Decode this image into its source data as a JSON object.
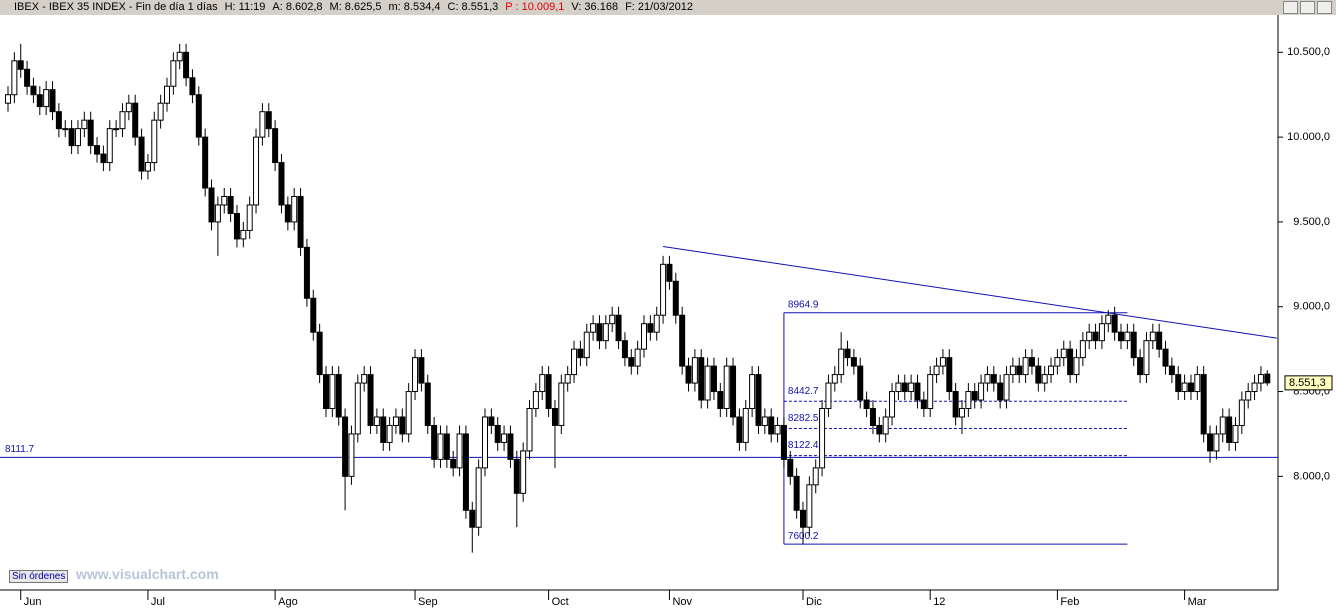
{
  "header": [
    "IBEX - IBEX 35 INDEX - Fin de día 1 días",
    "H: 11:19",
    "A: 8.602,8",
    "M: 8.625,5",
    "m: 8.534,4",
    "C: 8.551,3",
    "P : 10.009,1",
    "V: 36.168",
    "F: 21/03/2012"
  ],
  "button": "Sin órdenes",
  "watermark": "www.visualchart.com",
  "chart_data": {
    "type": "candlestick",
    "ylim": [
      7330,
      10720
    ],
    "yticks": [
      {
        "value": 8000,
        "label": "8.000,0"
      },
      {
        "value": 8500,
        "label": "8.500,0"
      },
      {
        "value": 9000,
        "label": "9.000,0"
      },
      {
        "value": 9500,
        "label": "9.500,0"
      },
      {
        "value": 10000,
        "label": "10.000,0"
      },
      {
        "value": 10500,
        "label": "10.500,0"
      }
    ],
    "xticks": [
      {
        "value": 2,
        "label": "Jun"
      },
      {
        "value": 22,
        "label": "Jul"
      },
      {
        "value": 42,
        "label": "Ago"
      },
      {
        "value": 64,
        "label": "Sep"
      },
      {
        "value": 85,
        "label": "Oct"
      },
      {
        "value": 104,
        "label": "Nov"
      },
      {
        "value": 125,
        "label": "Dic"
      },
      {
        "value": 145,
        "label": "12"
      },
      {
        "value": 165,
        "label": "Feb"
      },
      {
        "value": 185,
        "label": "Mar"
      }
    ],
    "close_label": {
      "value": 8551.3,
      "label": "8.551,3"
    },
    "hline": {
      "value": 8111.7,
      "label": "8111.7"
    },
    "box": {
      "x": [
        122,
        176
      ],
      "top": {
        "value": 8964.9,
        "label": "8964.9"
      },
      "bottom": {
        "value": 7600.2,
        "label": "7600.2"
      }
    },
    "levels": [
      {
        "value": 8442.7,
        "label": "8442.7"
      },
      {
        "value": 8282.5,
        "label": "8282.5"
      },
      {
        "value": 8122.4,
        "label": "8122.4"
      }
    ],
    "trendline": {
      "x": [
        103,
        199.5
      ],
      "y": [
        9355,
        8815
      ]
    },
    "candles": [
      [
        10200,
        10300,
        10150,
        10250
      ],
      [
        10250,
        10500,
        10200,
        10450
      ],
      [
        10450,
        10550,
        10350,
        10400
      ],
      [
        10400,
        10450,
        10250,
        10300
      ],
      [
        10300,
        10350,
        10200,
        10250
      ],
      [
        10250,
        10300,
        10130,
        10180
      ],
      [
        10180,
        10330,
        10130,
        10280
      ],
      [
        10280,
        10330,
        10100,
        10150
      ],
      [
        10150,
        10200,
        10000,
        10050
      ],
      [
        10050,
        10100,
        10000,
        10050
      ],
      [
        10050,
        10100,
        9900,
        9950
      ],
      [
        9950,
        10100,
        9900,
        10050
      ],
      [
        10050,
        10150,
        10000,
        10100
      ],
      [
        10100,
        10150,
        9900,
        9950
      ],
      [
        9950,
        10000,
        9850,
        9900
      ],
      [
        9900,
        9950,
        9800,
        9850
      ],
      [
        9850,
        10100,
        9800,
        10050
      ],
      [
        10050,
        10100,
        10000,
        10050
      ],
      [
        10050,
        10200,
        10000,
        10150
      ],
      [
        10150,
        10250,
        10100,
        10200
      ],
      [
        10200,
        10250,
        9950,
        10000
      ],
      [
        10000,
        10050,
        9750,
        9800
      ],
      [
        9800,
        9900,
        9750,
        9850
      ],
      [
        9850,
        10150,
        9800,
        10100
      ],
      [
        10100,
        10250,
        10050,
        10200
      ],
      [
        10200,
        10350,
        10150,
        10300
      ],
      [
        10300,
        10500,
        10250,
        10450
      ],
      [
        10450,
        10550,
        10400,
        10500
      ],
      [
        10500,
        10550,
        10300,
        10350
      ],
      [
        10350,
        10400,
        10200,
        10250
      ],
      [
        10250,
        10300,
        9950,
        10000
      ],
      [
        10000,
        10050,
        9650,
        9700
      ],
      [
        9700,
        9750,
        9450,
        9500
      ],
      [
        9500,
        9650,
        9300,
        9600
      ],
      [
        9600,
        9700,
        9550,
        9650
      ],
      [
        9650,
        9700,
        9500,
        9550
      ],
      [
        9550,
        9600,
        9350,
        9400
      ],
      [
        9400,
        9500,
        9350,
        9450
      ],
      [
        9450,
        9650,
        9400,
        9600
      ],
      [
        9600,
        10050,
        9550,
        10000
      ],
      [
        10000,
        10200,
        9950,
        10150
      ],
      [
        10150,
        10200,
        10000,
        10050
      ],
      [
        10050,
        10100,
        9800,
        9850
      ],
      [
        9850,
        9900,
        9550,
        9600
      ],
      [
        9600,
        9650,
        9450,
        9500
      ],
      [
        9500,
        9700,
        9450,
        9650
      ],
      [
        9650,
        9700,
        9300,
        9350
      ],
      [
        9350,
        9400,
        9000,
        9050
      ],
      [
        9050,
        9100,
        8800,
        8850
      ],
      [
        8850,
        8900,
        8550,
        8600
      ],
      [
        8600,
        8650,
        8350,
        8400
      ],
      [
        8400,
        8650,
        8350,
        8600
      ],
      [
        8600,
        8650,
        8300,
        8350
      ],
      [
        8350,
        8400,
        7800,
        8000
      ],
      [
        8000,
        8300,
        7950,
        8250
      ],
      [
        8250,
        8600,
        8200,
        8550
      ],
      [
        8550,
        8650,
        8500,
        8600
      ],
      [
        8600,
        8650,
        8250,
        8300
      ],
      [
        8300,
        8400,
        8250,
        8350
      ],
      [
        8350,
        8400,
        8150,
        8200
      ],
      [
        8200,
        8350,
        8150,
        8300
      ],
      [
        8300,
        8400,
        8250,
        8350
      ],
      [
        8350,
        8400,
        8200,
        8250
      ],
      [
        8250,
        8550,
        8200,
        8500
      ],
      [
        8500,
        8750,
        8450,
        8700
      ],
      [
        8700,
        8750,
        8500,
        8550
      ],
      [
        8550,
        8600,
        8250,
        8300
      ],
      [
        8300,
        8350,
        8050,
        8100
      ],
      [
        8100,
        8300,
        8050,
        8250
      ],
      [
        8250,
        8300,
        8050,
        8100
      ],
      [
        8100,
        8150,
        8000,
        8050
      ],
      [
        8050,
        8300,
        8000,
        8250
      ],
      [
        8250,
        8300,
        7750,
        7800
      ],
      [
        7800,
        7850,
        7550,
        7700
      ],
      [
        7700,
        8100,
        7650,
        8050
      ],
      [
        8050,
        8400,
        8000,
        8350
      ],
      [
        8350,
        8400,
        8250,
        8300
      ],
      [
        8300,
        8350,
        8150,
        8200
      ],
      [
        8200,
        8300,
        8150,
        8250
      ],
      [
        8250,
        8300,
        8050,
        8100
      ],
      [
        8100,
        8150,
        7700,
        7900
      ],
      [
        7900,
        8200,
        7850,
        8150
      ],
      [
        8150,
        8450,
        8100,
        8400
      ],
      [
        8400,
        8550,
        8350,
        8500
      ],
      [
        8500,
        8650,
        8450,
        8600
      ],
      [
        8600,
        8650,
        8350,
        8400
      ],
      [
        8400,
        8450,
        8050,
        8300
      ],
      [
        8300,
        8600,
        8250,
        8550
      ],
      [
        8550,
        8650,
        8500,
        8600
      ],
      [
        8600,
        8800,
        8550,
        8750
      ],
      [
        8750,
        8800,
        8650,
        8700
      ],
      [
        8700,
        8900,
        8650,
        8850
      ],
      [
        8850,
        8950,
        8800,
        8900
      ],
      [
        8900,
        8950,
        8750,
        8800
      ],
      [
        8800,
        8950,
        8750,
        8900
      ],
      [
        8900,
        9000,
        8850,
        8950
      ],
      [
        8950,
        9000,
        8750,
        8800
      ],
      [
        8800,
        8850,
        8650,
        8700
      ],
      [
        8700,
        8750,
        8600,
        8650
      ],
      [
        8650,
        8800,
        8600,
        8750
      ],
      [
        8750,
        8950,
        8700,
        8900
      ],
      [
        8900,
        8950,
        8800,
        8850
      ],
      [
        8850,
        9000,
        8800,
        8950
      ],
      [
        8950,
        9300,
        8900,
        9250
      ],
      [
        9250,
        9300,
        9100,
        9150
      ],
      [
        9150,
        9200,
        8900,
        8950
      ],
      [
        8950,
        9000,
        8600,
        8650
      ],
      [
        8650,
        8700,
        8500,
        8550
      ],
      [
        8550,
        8750,
        8500,
        8700
      ],
      [
        8700,
        8750,
        8400,
        8450
      ],
      [
        8450,
        8700,
        8400,
        8650
      ],
      [
        8650,
        8700,
        8450,
        8500
      ],
      [
        8500,
        8550,
        8350,
        8400
      ],
      [
        8400,
        8700,
        8350,
        8650
      ],
      [
        8650,
        8700,
        8300,
        8350
      ],
      [
        8350,
        8400,
        8150,
        8200
      ],
      [
        8200,
        8450,
        8150,
        8400
      ],
      [
        8400,
        8650,
        8350,
        8600
      ],
      [
        8600,
        8650,
        8250,
        8300
      ],
      [
        8300,
        8400,
        8250,
        8350
      ],
      [
        8350,
        8400,
        8200,
        8250
      ],
      [
        8250,
        8350,
        8200,
        8300
      ],
      [
        8300,
        8350,
        8050,
        8100
      ],
      [
        8100,
        8150,
        7950,
        8000
      ],
      [
        8000,
        8050,
        7750,
        7800
      ],
      [
        7800,
        7850,
        7600,
        7700
      ],
      [
        7700,
        8000,
        7650,
        7950
      ],
      [
        7950,
        8100,
        7900,
        8050
      ],
      [
        8050,
        8450,
        8000,
        8400
      ],
      [
        8400,
        8600,
        8350,
        8550
      ],
      [
        8550,
        8650,
        8500,
        8600
      ],
      [
        8600,
        8850,
        8550,
        8750
      ],
      [
        8750,
        8800,
        8650,
        8700
      ],
      [
        8700,
        8750,
        8600,
        8650
      ],
      [
        8650,
        8700,
        8400,
        8450
      ],
      [
        8450,
        8500,
        8350,
        8400
      ],
      [
        8400,
        8450,
        8250,
        8300
      ],
      [
        8300,
        8350,
        8200,
        8250
      ],
      [
        8250,
        8400,
        8200,
        8350
      ],
      [
        8350,
        8550,
        8300,
        8500
      ],
      [
        8500,
        8600,
        8450,
        8550
      ],
      [
        8550,
        8600,
        8450,
        8500
      ],
      [
        8500,
        8600,
        8450,
        8550
      ],
      [
        8550,
        8600,
        8400,
        8450
      ],
      [
        8450,
        8500,
        8350,
        8400
      ],
      [
        8400,
        8650,
        8350,
        8600
      ],
      [
        8600,
        8700,
        8550,
        8650
      ],
      [
        8650,
        8750,
        8600,
        8700
      ],
      [
        8700,
        8750,
        8450,
        8500
      ],
      [
        8500,
        8550,
        8300,
        8350
      ],
      [
        8350,
        8450,
        8250,
        8400
      ],
      [
        8400,
        8550,
        8350,
        8500
      ],
      [
        8500,
        8550,
        8400,
        8450
      ],
      [
        8450,
        8600,
        8400,
        8550
      ],
      [
        8550,
        8650,
        8500,
        8600
      ],
      [
        8600,
        8650,
        8500,
        8550
      ],
      [
        8550,
        8600,
        8400,
        8450
      ],
      [
        8450,
        8650,
        8400,
        8600
      ],
      [
        8600,
        8700,
        8550,
        8650
      ],
      [
        8650,
        8700,
        8550,
        8600
      ],
      [
        8600,
        8750,
        8550,
        8700
      ],
      [
        8700,
        8750,
        8600,
        8650
      ],
      [
        8650,
        8700,
        8500,
        8550
      ],
      [
        8550,
        8650,
        8500,
        8600
      ],
      [
        8600,
        8700,
        8550,
        8650
      ],
      [
        8650,
        8750,
        8600,
        8700
      ],
      [
        8700,
        8800,
        8650,
        8750
      ],
      [
        8750,
        8800,
        8550,
        8600
      ],
      [
        8600,
        8750,
        8550,
        8700
      ],
      [
        8700,
        8850,
        8650,
        8800
      ],
      [
        8800,
        8900,
        8750,
        8850
      ],
      [
        8850,
        8900,
        8750,
        8800
      ],
      [
        8800,
        8950,
        8750,
        8900
      ],
      [
        8900,
        8980,
        8850,
        8950
      ],
      [
        8950,
        9000,
        8800,
        8850
      ],
      [
        8850,
        8900,
        8750,
        8800
      ],
      [
        8800,
        8900,
        8750,
        8850
      ],
      [
        8850,
        8900,
        8650,
        8700
      ],
      [
        8700,
        8750,
        8550,
        8600
      ],
      [
        8600,
        8850,
        8550,
        8800
      ],
      [
        8800,
        8900,
        8750,
        8850
      ],
      [
        8850,
        8900,
        8700,
        8750
      ],
      [
        8750,
        8800,
        8600,
        8650
      ],
      [
        8650,
        8700,
        8550,
        8600
      ],
      [
        8600,
        8650,
        8450,
        8500
      ],
      [
        8500,
        8600,
        8450,
        8550
      ],
      [
        8550,
        8600,
        8450,
        8500
      ],
      [
        8500,
        8650,
        8450,
        8600
      ],
      [
        8600,
        8650,
        8200,
        8250
      ],
      [
        8250,
        8300,
        8080,
        8150
      ],
      [
        8150,
        8300,
        8100,
        8250
      ],
      [
        8250,
        8400,
        8200,
        8350
      ],
      [
        8350,
        8400,
        8150,
        8200
      ],
      [
        8200,
        8350,
        8150,
        8300
      ],
      [
        8300,
        8500,
        8250,
        8450
      ],
      [
        8450,
        8550,
        8400,
        8500
      ],
      [
        8500,
        8600,
        8450,
        8550
      ],
      [
        8550,
        8650,
        8500,
        8600
      ],
      [
        8602.8,
        8625.5,
        8534.4,
        8551.3
      ]
    ]
  }
}
